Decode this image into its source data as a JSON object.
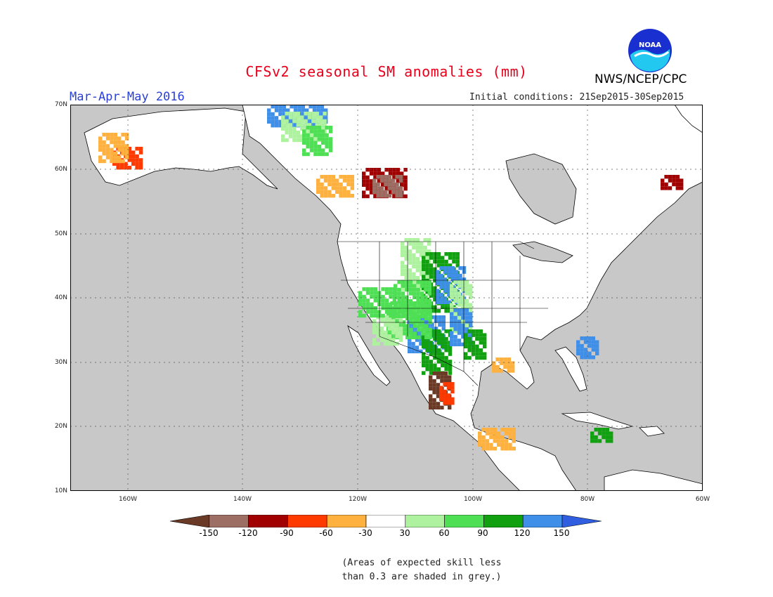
{
  "header": {
    "title": "CFSv2 seasonal SM anomalies (mm)",
    "period": "Mar-Apr-May 2016",
    "initial_conditions": "Initial conditions: 21Sep2015-30Sep2015",
    "agency": "NWS/NCEP/CPC",
    "logo_text": "NOAA"
  },
  "map": {
    "lat_labels": [
      "70N",
      "60N",
      "50N",
      "40N",
      "30N",
      "20N",
      "10N"
    ],
    "lon_labels": [
      "160W",
      "140W",
      "120W",
      "100W",
      "80W",
      "60W"
    ],
    "colors": {
      "ocean": "#c8c8c8",
      "land_no_anomaly": "#ffffff",
      "outline": "#000000"
    }
  },
  "legend": {
    "labels": [
      "-150",
      "-120",
      "-90",
      "-60",
      "-30",
      "30",
      "60",
      "90",
      "120",
      "150"
    ],
    "colors": [
      "#6b3a26",
      "#9c6e64",
      "#a10000",
      "#ff3a00",
      "#ffb13f",
      "#ffffff",
      "#aef2a0",
      "#4fdf55",
      "#10a010",
      "#3f8fe8",
      "#2f5fe0"
    ]
  },
  "note": {
    "line1": "(Areas of expected skill less",
    "line2": "than 0.3 are shaded in grey.)"
  }
}
